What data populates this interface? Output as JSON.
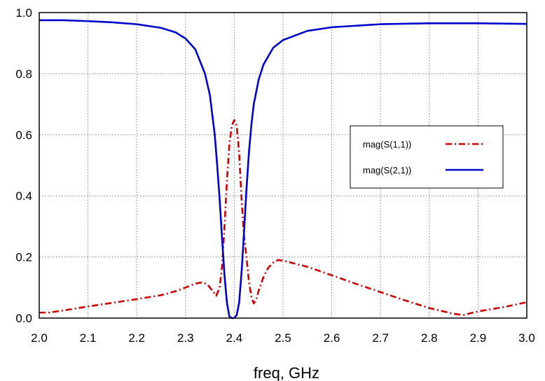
{
  "chart_data": {
    "type": "line",
    "xlabel": "freq, GHz",
    "ylabel": "",
    "xlim": [
      2.0,
      3.0
    ],
    "ylim": [
      0.0,
      1.0
    ],
    "xticks": [
      2.0,
      2.1,
      2.2,
      2.3,
      2.4,
      2.5,
      2.6,
      2.7,
      2.8,
      2.9,
      3.0
    ],
    "xtick_labels": [
      "2.0",
      "2.1",
      "2.2",
      "2.3",
      "2.4",
      "2.5",
      "2.6",
      "2.7",
      "2.8",
      "2.9",
      "3.0"
    ],
    "yticks": [
      0.0,
      0.2,
      0.4,
      0.6,
      0.8,
      1.0
    ],
    "ytick_labels": [
      "0.0",
      "0.2",
      "0.4",
      "0.6",
      "0.8",
      "1.0"
    ],
    "grid": true,
    "legend_position": "center-right",
    "series": [
      {
        "name": "mag(S(1,1))",
        "color": "#cc0000",
        "style": "dash-dot",
        "x": [
          2.0,
          2.02,
          2.05,
          2.1,
          2.15,
          2.2,
          2.25,
          2.28,
          2.3,
          2.32,
          2.335,
          2.345,
          2.355,
          2.363,
          2.37,
          2.375,
          2.38,
          2.385,
          2.39,
          2.395,
          2.4,
          2.405,
          2.41,
          2.415,
          2.42,
          2.425,
          2.43,
          2.435,
          2.44,
          2.445,
          2.45,
          2.46,
          2.47,
          2.48,
          2.49,
          2.5,
          2.55,
          2.6,
          2.65,
          2.7,
          2.75,
          2.8,
          2.85,
          2.87,
          2.9,
          2.95,
          3.0
        ],
        "y": [
          0.018,
          0.018,
          0.025,
          0.038,
          0.05,
          0.062,
          0.075,
          0.088,
          0.1,
          0.113,
          0.117,
          0.11,
          0.09,
          0.073,
          0.1,
          0.17,
          0.3,
          0.45,
          0.57,
          0.63,
          0.648,
          0.63,
          0.54,
          0.39,
          0.27,
          0.2,
          0.12,
          0.07,
          0.048,
          0.06,
          0.09,
          0.135,
          0.165,
          0.182,
          0.19,
          0.188,
          0.168,
          0.14,
          0.112,
          0.085,
          0.058,
          0.033,
          0.014,
          0.01,
          0.022,
          0.035,
          0.052
        ]
      },
      {
        "name": "mag(S(2,1))",
        "color": "#0000cc",
        "style": "solid",
        "x": [
          2.0,
          2.05,
          2.1,
          2.15,
          2.2,
          2.25,
          2.28,
          2.3,
          2.32,
          2.34,
          2.35,
          2.36,
          2.365,
          2.37,
          2.375,
          2.38,
          2.385,
          2.39,
          2.395,
          2.4,
          2.405,
          2.41,
          2.415,
          2.42,
          2.425,
          2.43,
          2.435,
          2.44,
          2.45,
          2.46,
          2.48,
          2.5,
          2.55,
          2.6,
          2.7,
          2.8,
          2.9,
          3.0
        ],
        "y": [
          0.975,
          0.975,
          0.972,
          0.968,
          0.962,
          0.95,
          0.935,
          0.915,
          0.88,
          0.8,
          0.73,
          0.6,
          0.5,
          0.39,
          0.26,
          0.14,
          0.05,
          0.005,
          0.0,
          0.0,
          0.01,
          0.05,
          0.15,
          0.28,
          0.42,
          0.54,
          0.63,
          0.7,
          0.78,
          0.83,
          0.885,
          0.91,
          0.94,
          0.952,
          0.962,
          0.965,
          0.965,
          0.963
        ]
      }
    ]
  }
}
